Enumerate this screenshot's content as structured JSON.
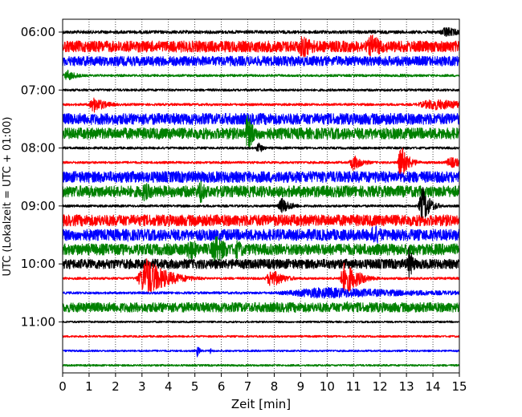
{
  "chart_data": {
    "type": "line",
    "title": "",
    "xlabel": "Zeit  [min]",
    "ylabel": "UTC (Lokalzeit = UTC + 01:00)",
    "xlim": [
      0,
      15
    ],
    "x_ticks": [
      "0",
      "1",
      "2",
      "3",
      "4",
      "5",
      "6",
      "7",
      "8",
      "9",
      "10",
      "11",
      "12",
      "13",
      "14",
      "15"
    ],
    "y_ticks": [
      "06:00",
      "07:00",
      "08:00",
      "09:00",
      "10:00",
      "11:00"
    ],
    "grid": "vertical dotted",
    "trace_interval_minutes": 15,
    "first_trace_utc": "06:00",
    "trace_colors": [
      "#000000",
      "#ff0000",
      "#0000ff",
      "#008000"
    ],
    "series": [
      {
        "start": "06:00",
        "color": "#000000",
        "amplitude": 2,
        "events": [
          {
            "t": 14.5,
            "a": 7,
            "w": 0.6
          }
        ]
      },
      {
        "start": "06:15",
        "color": "#ff0000",
        "amplitude": 7,
        "events": [
          {
            "t": 9.1,
            "a": 15,
            "w": 0.6
          },
          {
            "t": 11.7,
            "a": 15,
            "w": 0.6
          }
        ]
      },
      {
        "start": "06:30",
        "color": "#0000ff",
        "amplitude": 6,
        "events": [
          {
            "t": 8.6,
            "a": 9,
            "w": 0.3
          },
          {
            "t": 4.7,
            "a": 4,
            "w": 0.1
          }
        ]
      },
      {
        "start": "06:45",
        "color": "#008000",
        "amplitude": 1.5,
        "events": [
          {
            "t": 0.2,
            "a": 7,
            "w": 0.4
          },
          {
            "t": 12.9,
            "a": 2,
            "w": 1.2
          }
        ]
      },
      {
        "start": "07:00",
        "color": "#000000",
        "amplitude": 1.5,
        "events": []
      },
      {
        "start": "07:15",
        "color": "#ff0000",
        "amplitude": 1.5,
        "events": [
          {
            "t": 1.2,
            "a": 10,
            "w": 0.5
          },
          {
            "t": 14.1,
            "a": 7,
            "w": 1.8
          }
        ]
      },
      {
        "start": "07:30",
        "color": "#0000ff",
        "amplitude": 7,
        "events": []
      },
      {
        "start": "07:45",
        "color": "#008000",
        "amplitude": 7,
        "events": [
          {
            "t": 7.0,
            "a": 24,
            "w": 0.3
          }
        ]
      },
      {
        "start": "08:00",
        "color": "#000000",
        "amplitude": 1.5,
        "events": [
          {
            "t": 7.4,
            "a": 8,
            "w": 0.2
          }
        ]
      },
      {
        "start": "08:15",
        "color": "#ff0000",
        "amplitude": 1.5,
        "events": [
          {
            "t": 11.0,
            "a": 10,
            "w": 0.4
          },
          {
            "t": 12.8,
            "a": 22,
            "w": 0.3
          },
          {
            "t": 14.7,
            "a": 7,
            "w": 0.6
          }
        ]
      },
      {
        "start": "08:30",
        "color": "#0000ff",
        "amplitude": 7,
        "events": []
      },
      {
        "start": "08:45",
        "color": "#008000",
        "amplitude": 7,
        "events": [
          {
            "t": 3.1,
            "a": 12,
            "w": 0.6
          },
          {
            "t": 5.2,
            "a": 16,
            "w": 0.3
          }
        ]
      },
      {
        "start": "09:00",
        "color": "#000000",
        "amplitude": 1.5,
        "events": [
          {
            "t": 8.3,
            "a": 10,
            "w": 0.4
          },
          {
            "t": 13.6,
            "a": 25,
            "w": 0.3
          }
        ]
      },
      {
        "start": "09:15",
        "color": "#ff0000",
        "amplitude": 7,
        "events": []
      },
      {
        "start": "09:30",
        "color": "#0000ff",
        "amplitude": 7,
        "events": [
          {
            "t": 2.5,
            "a": 9,
            "w": 0.3
          },
          {
            "t": 11.8,
            "a": 13,
            "w": 0.5
          }
        ]
      },
      {
        "start": "09:45",
        "color": "#008000",
        "amplitude": 7,
        "events": [
          {
            "t": 4.8,
            "a": 15,
            "w": 0.5
          },
          {
            "t": 5.8,
            "a": 18,
            "w": 0.6
          },
          {
            "t": 6.6,
            "a": 12,
            "w": 0.5
          }
        ]
      },
      {
        "start": "10:00",
        "color": "#000000",
        "amplitude": 6,
        "events": [
          {
            "t": 13.1,
            "a": 22,
            "w": 0.2
          }
        ]
      },
      {
        "start": "10:15",
        "color": "#ff0000",
        "amplitude": 1.5,
        "events": [
          {
            "t": 3.2,
            "a": 25,
            "w": 0.8
          },
          {
            "t": 7.9,
            "a": 12,
            "w": 0.5
          },
          {
            "t": 10.7,
            "a": 22,
            "w": 0.5
          }
        ]
      },
      {
        "start": "10:30",
        "color": "#0000ff",
        "amplitude": 1.5,
        "events": [
          {
            "t": 10.0,
            "a": 7,
            "w": 4.5
          }
        ]
      },
      {
        "start": "10:45",
        "color": "#008000",
        "amplitude": 6,
        "events": [
          {
            "t": 10.8,
            "a": 8,
            "w": 0.4
          }
        ]
      },
      {
        "start": "11:00",
        "color": "#000000",
        "amplitude": 1.2,
        "events": []
      },
      {
        "start": "11:15",
        "color": "#ff0000",
        "amplitude": 1.2,
        "events": []
      },
      {
        "start": "11:30",
        "color": "#0000ff",
        "amplitude": 1.2,
        "events": [
          {
            "t": 5.1,
            "a": 8,
            "w": 0.1
          },
          {
            "t": 5.6,
            "a": 4,
            "w": 0.1
          }
        ]
      },
      {
        "start": "11:45",
        "color": "#008000",
        "amplitude": 1.2,
        "events": []
      }
    ]
  }
}
